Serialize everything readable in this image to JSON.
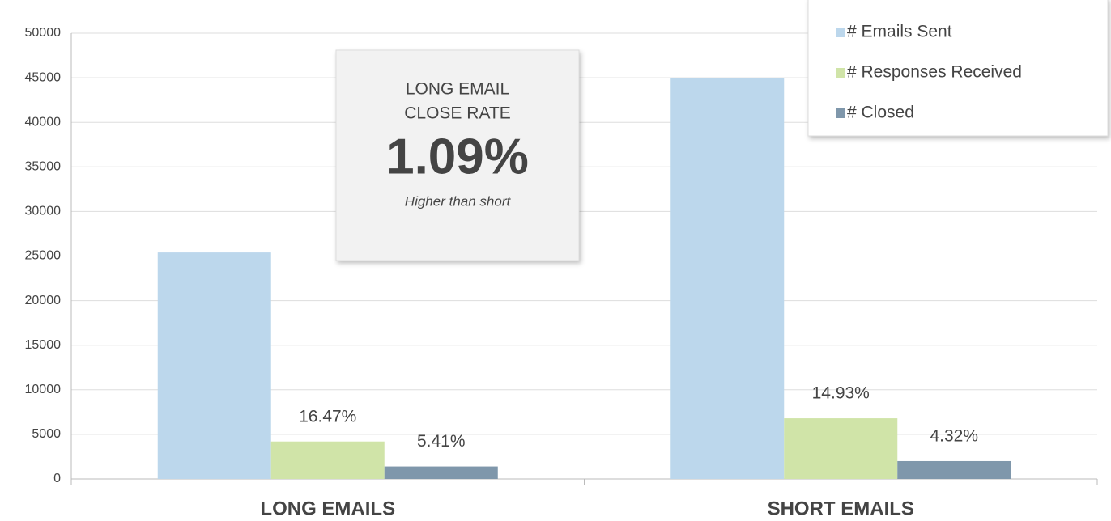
{
  "chart_data": {
    "type": "bar",
    "categories": [
      "LONG EMAILS",
      "SHORT EMAILS"
    ],
    "series": [
      {
        "name": "# Emails Sent",
        "color": "#bcd7ec",
        "values": [
          25400,
          45000
        ]
      },
      {
        "name": "# Responses Received",
        "color": "#d0e4a8",
        "values": [
          4200,
          6800
        ],
        "annotations": [
          "16.47%",
          "14.93%"
        ]
      },
      {
        "name": "# Closed",
        "color": "#7f97ab",
        "values": [
          1400,
          2000
        ],
        "annotations": [
          "5.41%",
          "4.32%"
        ]
      }
    ],
    "ylim": [
      0,
      50000
    ],
    "yticks": [
      0,
      5000,
      10000,
      15000,
      20000,
      25000,
      30000,
      35000,
      40000,
      45000,
      50000
    ],
    "grid": true,
    "legend": "top-right",
    "callout": {
      "lines": [
        "LONG EMAIL",
        "CLOSE RATE"
      ],
      "value": "1.09%",
      "note": "Higher than short"
    }
  }
}
